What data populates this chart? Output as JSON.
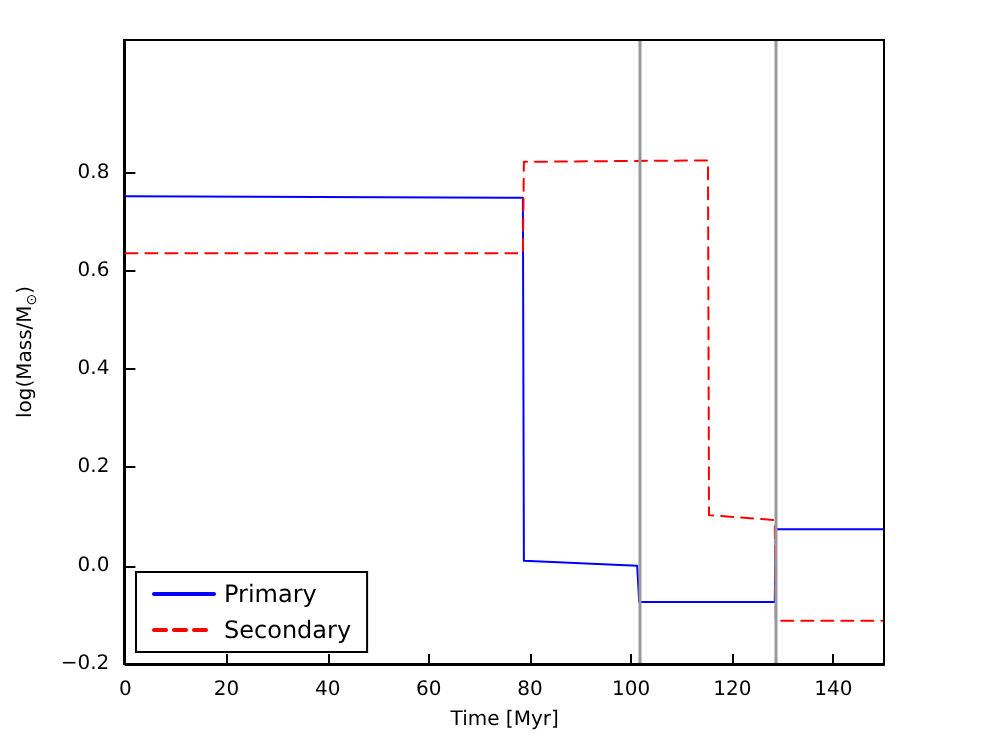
{
  "chart_data": {
    "type": "line",
    "xlabel": "Time [Myr]",
    "ylabel": "log(Mass/M$_{⊙}$)",
    "xlim": [
      0,
      150
    ],
    "xticks": [
      0,
      20,
      40,
      60,
      80,
      100,
      120,
      140
    ],
    "ylim": [
      -0.2,
      1.07
    ],
    "yticks": [
      {
        "value": -0.2,
        "label": "−0.2"
      },
      {
        "value": 0,
        "label": "0.0"
      },
      0.2,
      0.4,
      0.6,
      0.8
    ],
    "series": [
      {
        "name": "Primary",
        "color": "#0000ff",
        "line_style": "solid",
        "x": [
          0,
          78.6,
          78.8,
          101.2,
          101.6,
          128.4,
          128.6,
          150
        ],
        "values": [
          0.752,
          0.749,
          0.01,
          0.0,
          -0.074,
          -0.074,
          0.074,
          0.074
        ]
      },
      {
        "name": "Secondary",
        "color": "#ff0000",
        "line_style": "dashed",
        "x": [
          0,
          78.6,
          78.8,
          115.2,
          115.4,
          128.4,
          128.6,
          150
        ],
        "values": [
          0.636,
          0.636,
          0.822,
          0.825,
          0.103,
          0.093,
          -0.112,
          -0.112
        ]
      }
    ],
    "ref_lines": [
      {
        "axis": "x",
        "value": 101.5,
        "color": "#999999"
      },
      {
        "axis": "x",
        "value": 128.5,
        "color": "#999999"
      }
    ],
    "legend": "bottom left",
    "marker": "none",
    "grid": false
  }
}
